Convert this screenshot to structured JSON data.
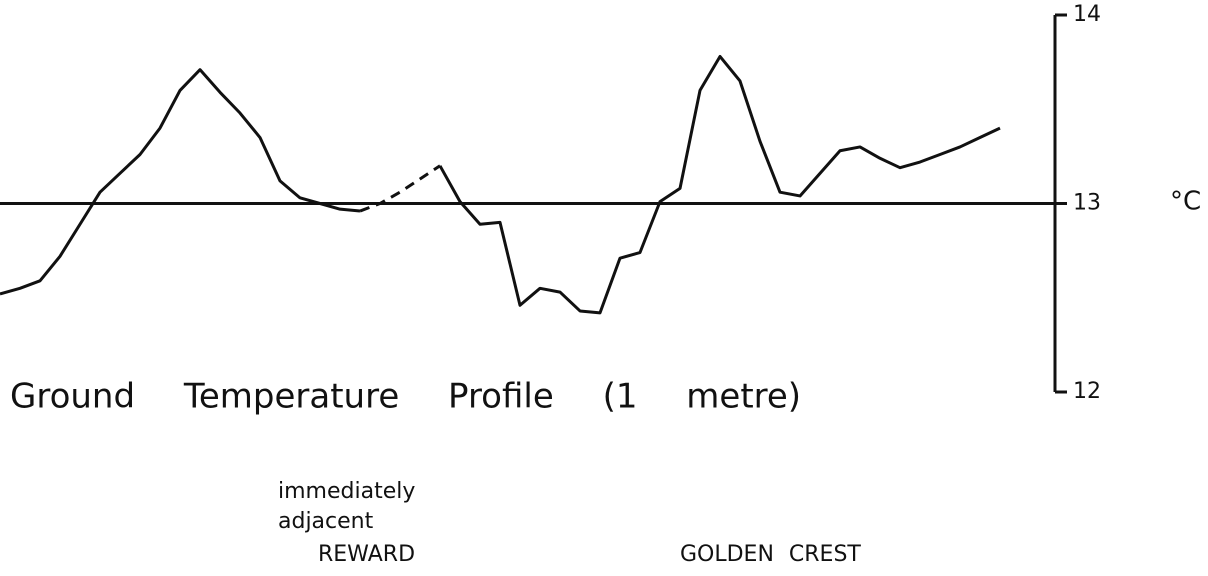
{
  "chart_data": {
    "type": "line",
    "title": "Ground Temperature Profile (1 metre)",
    "y_unit": "°C",
    "annotations": [
      "immediately",
      "adjacent",
      "REWARD",
      "GOLDEN CREST"
    ],
    "categories": [
      null,
      null,
      null,
      null,
      null,
      null,
      null,
      null,
      null,
      null,
      null,
      null,
      null,
      null,
      null,
      null,
      null,
      null,
      null,
      null,
      null,
      null,
      null,
      null,
      null,
      null,
      null,
      null,
      null,
      null,
      null,
      null,
      null,
      null,
      null,
      null,
      null,
      null,
      null,
      null,
      null,
      null,
      null,
      null,
      null,
      null,
      null,
      null,
      null,
      null,
      null
    ],
    "series": [
      {
        "color": "#111111",
        "dashed": false,
        "values": [
          12.52,
          12.55,
          12.59,
          12.72,
          12.89,
          13.06,
          13.16,
          13.26,
          13.4,
          13.6,
          13.71,
          13.59,
          13.48,
          13.35,
          13.12,
          13.03,
          13.0,
          12.97,
          12.96,
          null,
          null,
          null,
          13.2,
          13.01,
          12.89,
          12.9,
          12.46,
          12.55,
          12.53,
          12.43,
          12.42,
          12.71,
          12.74,
          13.01,
          13.08,
          13.6,
          13.78,
          13.65,
          13.33,
          13.06,
          13.04,
          13.16,
          13.28,
          13.3,
          13.24,
          13.19,
          13.22,
          13.26,
          13.3,
          13.35,
          13.4
        ]
      },
      {
        "color": "#111111",
        "dashed": true,
        "values": [
          null,
          null,
          null,
          null,
          null,
          null,
          null,
          null,
          null,
          null,
          null,
          null,
          null,
          null,
          null,
          null,
          null,
          null,
          12.96,
          13.0,
          13.06,
          13.13,
          13.2,
          null,
          null,
          null,
          null,
          null,
          null,
          null,
          null,
          null,
          null,
          null,
          null,
          null,
          null,
          null,
          null,
          null,
          null,
          null,
          null,
          null,
          null,
          null,
          null,
          null,
          null,
          null,
          null
        ]
      }
    ],
    "reference_line": 13,
    "ylim": [
      12,
      14
    ],
    "yticks": [
      12,
      13,
      14
    ],
    "y_axis_side": "right",
    "grid": false
  }
}
